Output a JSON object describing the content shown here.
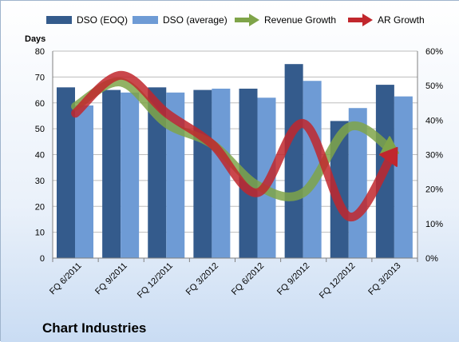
{
  "chart_data": {
    "type": "bar",
    "title": "Chart Industries",
    "ylabel": "Days",
    "ylim": [
      0,
      80
    ],
    "y2lim": [
      0,
      0.6
    ],
    "y_ticks": [
      "0",
      "10",
      "20",
      "30",
      "40",
      "50",
      "60",
      "70",
      "80"
    ],
    "y2_ticks": [
      "0%",
      "10%",
      "20%",
      "30%",
      "40%",
      "50%",
      "60%"
    ],
    "grid": true,
    "legend_position": "top",
    "categories": [
      "FQ 6/2011",
      "FQ 9/2011",
      "FQ 12/2011",
      "FQ 3/2012",
      "FQ 6/2012",
      "FQ 9/2012",
      "FQ 12/2012",
      "FQ 3/2013"
    ],
    "series": [
      {
        "name": "DSO (EOQ)",
        "kind": "bar",
        "axis": "left",
        "color": "#345b8c",
        "values": [
          66,
          65,
          66,
          65,
          65.5,
          75,
          53,
          67
        ]
      },
      {
        "name": "DSO (average)",
        "kind": "bar",
        "axis": "left",
        "color": "#6e9bd5",
        "values": [
          59,
          64,
          64,
          65.5,
          62,
          68.5,
          58,
          62.5
        ]
      },
      {
        "name": "Revenue Growth",
        "kind": "line",
        "axis": "right",
        "color": "#7fa449",
        "values": [
          0.44,
          0.51,
          0.39,
          0.33,
          0.21,
          0.19,
          0.38,
          0.31
        ]
      },
      {
        "name": "AR Growth",
        "kind": "line",
        "axis": "right",
        "color": "#c1272d",
        "values": [
          0.42,
          0.53,
          0.42,
          0.33,
          0.19,
          0.39,
          0.12,
          0.31
        ]
      }
    ]
  },
  "colors": {
    "background_top": "#ffffff",
    "background_bottom": "#c9dcf3",
    "plot_background": "#ffffff",
    "grid": "#bdbdbd"
  }
}
